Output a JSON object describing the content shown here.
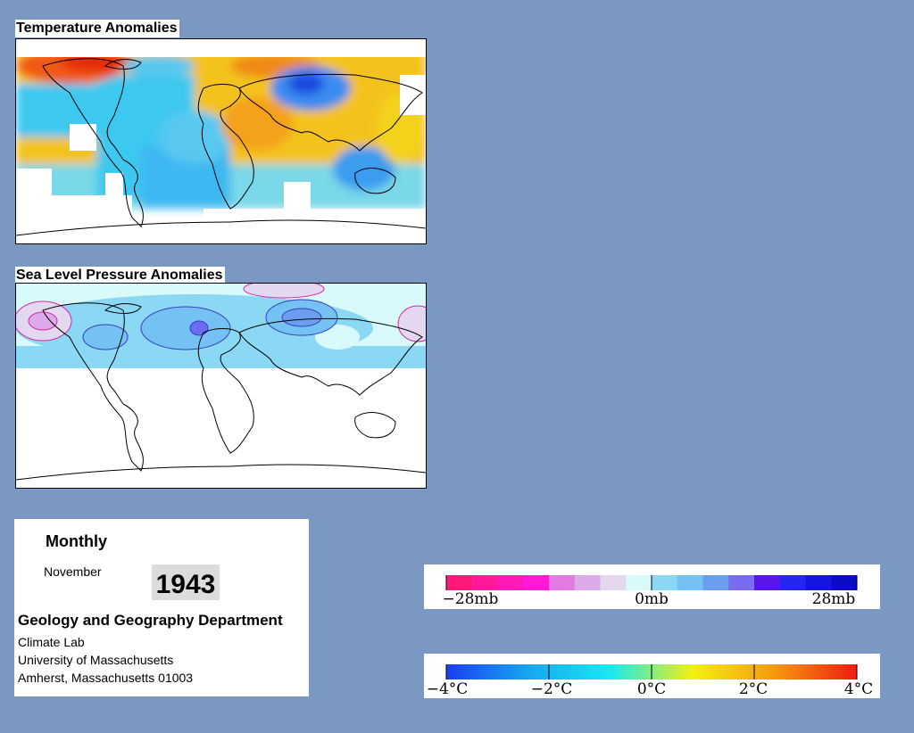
{
  "temperature_map": {
    "title": "Temperature Anomalies"
  },
  "pressure_map": {
    "title": "Sea Level Pressure Anomalies"
  },
  "info": {
    "frequency": "Monthly",
    "month": "November",
    "year": "1943",
    "department": "Geology and Geography Department",
    "lab": "Climate Lab",
    "university": "University of Massachusetts",
    "address": "Amherst, Massachusetts 01003"
  },
  "pressure_legend": {
    "labels": [
      "−28mb",
      "0mb",
      "28mb"
    ],
    "colors": [
      "#ff1a7a",
      "#ff1a9a",
      "#ff1ab8",
      "#ff1ad6",
      "#e27ae2",
      "#dcaae8",
      "#e4d8f0",
      "#d8fafa",
      "#8ad8f4",
      "#74c2f4",
      "#6c9ef0",
      "#7a6cf0",
      "#5a16e6",
      "#2626ee",
      "#1616dc",
      "#0c0cc2"
    ]
  },
  "temperature_legend": {
    "labels": [
      "−4°C",
      "−2°C",
      "0°C",
      "2°C",
      "4°C"
    ],
    "gradient": [
      "#1a3ef0",
      "#18a6f0",
      "#18eaf0",
      "#f4f010",
      "#f49a10",
      "#f01a10"
    ]
  },
  "colors": {
    "background": "#7a98c2",
    "warm_anomaly": "#e8400e",
    "cold_anomaly": "#1a5ae8"
  }
}
